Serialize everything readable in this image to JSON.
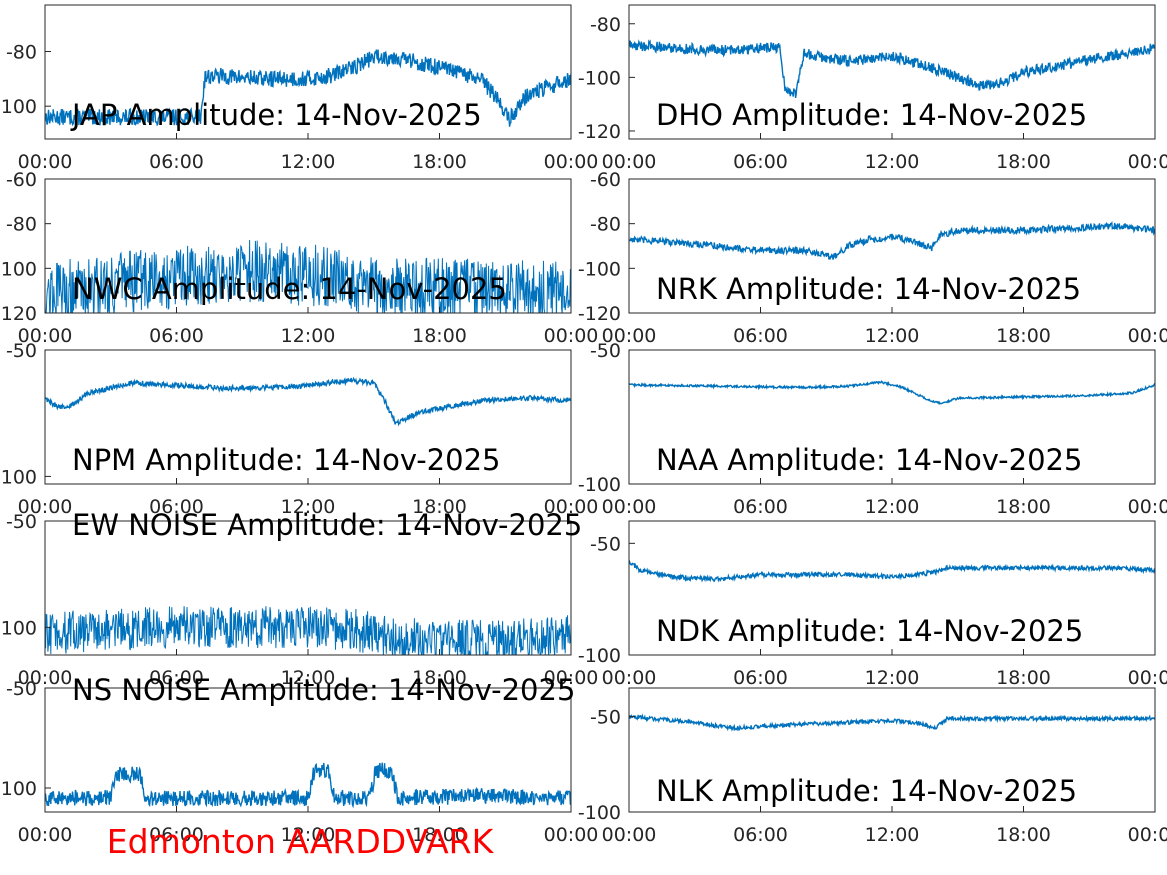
{
  "footer": {
    "label": "Edmonton AARDDVARK",
    "color": "#ff0000"
  },
  "line_color": "#0072bd",
  "chart_data": [
    {
      "type": "line",
      "title": "JAP Amplitude: 14-Nov-2025",
      "xlim": [
        0,
        24
      ],
      "ylim": [
        -112,
        -63
      ],
      "yticks": [
        {
          "v": -80,
          "label": "-80"
        },
        {
          "v": -100,
          "label": "100"
        }
      ],
      "xticks": [
        "00:00",
        "06:00",
        "12:00",
        "18:00",
        "00:00"
      ],
      "noise": 3,
      "x": [
        0,
        2,
        4,
        6,
        7.1,
        7.3,
        8,
        10,
        12,
        13,
        14,
        15,
        16,
        17,
        18,
        19,
        20,
        20.7,
        21.2,
        21.6,
        22,
        23,
        24
      ],
      "y": [
        -104,
        -104,
        -104,
        -104,
        -104,
        -89,
        -89,
        -90,
        -90,
        -89,
        -86,
        -82,
        -82,
        -84,
        -86,
        -88,
        -91,
        -98,
        -105,
        -100,
        -96,
        -93,
        -90
      ]
    },
    {
      "type": "line",
      "title": "DHO Amplitude: 14-Nov-2025",
      "xlim": [
        0,
        24
      ],
      "ylim": [
        -123,
        -73
      ],
      "yticks": [
        {
          "v": -80,
          "label": "-80"
        },
        {
          "v": -100,
          "label": "-100"
        },
        {
          "v": -120,
          "label": "-120"
        }
      ],
      "xticks": [
        "00:00",
        "06:00",
        "12:00",
        "18:00",
        "00:00"
      ],
      "noise": 2,
      "x": [
        0,
        2,
        4,
        6,
        6.9,
        7.1,
        7.6,
        8,
        8.5,
        10,
        12,
        14,
        16,
        17,
        18,
        20,
        22,
        24
      ],
      "y": [
        -88,
        -89,
        -90,
        -89,
        -89,
        -104,
        -106,
        -91,
        -92,
        -94,
        -92,
        -97,
        -103,
        -102,
        -98,
        -95,
        -92,
        -89
      ]
    },
    {
      "type": "line",
      "title": "NWC Amplitude: 14-Nov-2025",
      "xlim": [
        0,
        24
      ],
      "ylim": [
        -120,
        -60
      ],
      "yticks": [
        {
          "v": -60,
          "label": "-60"
        },
        {
          "v": -80,
          "label": "-80"
        },
        {
          "v": -100,
          "label": "100"
        },
        {
          "v": -120,
          "label": "120"
        }
      ],
      "xticks": [
        "00:00",
        "06:00",
        "12:00",
        "18:00",
        "00:00"
      ],
      "noise": 14,
      "x": [
        0,
        3,
        6,
        9,
        12,
        15,
        18,
        21,
        24
      ],
      "y": [
        -111,
        -107,
        -104,
        -101,
        -103,
        -107,
        -109,
        -110,
        -111
      ]
    },
    {
      "type": "line",
      "title": "NRK Amplitude: 14-Nov-2025",
      "xlim": [
        0,
        24
      ],
      "ylim": [
        -120,
        -60
      ],
      "yticks": [
        {
          "v": -60,
          "label": "-60"
        },
        {
          "v": -80,
          "label": "-80"
        },
        {
          "v": -100,
          "label": "-100"
        },
        {
          "v": -120,
          "label": "-120"
        }
      ],
      "xticks": [
        "00:00",
        "06:00",
        "12:00",
        "18:00",
        "00:00"
      ],
      "noise": 1.5,
      "x": [
        0,
        3,
        6,
        8,
        9.3,
        10,
        11,
        12,
        13,
        13.8,
        14.2,
        15,
        16,
        18,
        20,
        22,
        24
      ],
      "y": [
        -87,
        -89,
        -92,
        -92,
        -95,
        -90,
        -87,
        -86,
        -88,
        -91,
        -85,
        -83,
        -83,
        -83,
        -82,
        -81,
        -83
      ]
    },
    {
      "type": "line",
      "title": "NPM Amplitude: 14-Nov-2025",
      "xlim": [
        0,
        24
      ],
      "ylim": [
        -103,
        -50
      ],
      "yticks": [
        {
          "v": -50,
          "label": "-50"
        },
        {
          "v": -100,
          "label": "100"
        }
      ],
      "xticks": [
        "00:00",
        "06:00",
        "12:00",
        "18:00",
        "00:00"
      ],
      "noise": 1,
      "x": [
        0,
        0.5,
        1,
        2,
        3,
        4,
        6,
        8,
        10,
        12,
        13,
        14,
        15,
        15.5,
        16,
        16.5,
        17,
        18,
        20,
        22,
        24
      ],
      "y": [
        -69,
        -72,
        -73,
        -67,
        -65,
        -63,
        -64,
        -65,
        -65,
        -64,
        -63,
        -62,
        -63,
        -70,
        -79,
        -77,
        -75,
        -73,
        -70,
        -69,
        -70
      ]
    },
    {
      "type": "line",
      "title": "NAA Amplitude: 14-Nov-2025",
      "xlim": [
        0,
        24
      ],
      "ylim": [
        -100,
        -50
      ],
      "yticks": [
        {
          "v": -50,
          "label": "-50"
        },
        {
          "v": -100,
          "label": "-100"
        }
      ],
      "xticks": [
        "00:00",
        "06:00",
        "12:00",
        "18:00",
        "00:00"
      ],
      "noise": 0.4,
      "x": [
        0,
        4,
        8,
        10,
        11.5,
        12.5,
        13.5,
        14.2,
        15,
        18,
        21,
        23,
        24
      ],
      "y": [
        -63,
        -63.5,
        -64,
        -63.5,
        -62,
        -64,
        -68,
        -70,
        -68,
        -67.5,
        -67,
        -66,
        -63
      ]
    },
    {
      "type": "line",
      "title": "EW NOISE Amplitude: 14-Nov-2025",
      "xlim": [
        0,
        24
      ],
      "ylim": [
        -113,
        -50
      ],
      "yticks": [
        {
          "v": -50,
          "label": "-50"
        },
        {
          "v": -100,
          "label": "100"
        }
      ],
      "xticks": [
        "00:00",
        "06:00",
        "12:00",
        "18:00",
        "00:00"
      ],
      "noise": 10,
      "x": [
        0,
        3,
        6,
        9,
        12,
        14,
        16,
        18,
        20,
        22,
        24
      ],
      "y": [
        -103,
        -101,
        -100,
        -100,
        -100,
        -101,
        -105,
        -106,
        -106,
        -105,
        -104
      ]
    },
    {
      "type": "line",
      "title": "NDK Amplitude: 14-Nov-2025",
      "xlim": [
        0,
        24
      ],
      "ylim": [
        -100,
        -40
      ],
      "yticks": [
        {
          "v": -50,
          "label": "-50"
        },
        {
          "v": -100,
          "label": "-100"
        }
      ],
      "xticks": [
        "00:00",
        "06:00",
        "12:00",
        "18:00",
        "00:00"
      ],
      "noise": 1,
      "x": [
        0,
        0.5,
        2,
        4,
        6,
        8,
        10,
        12,
        13,
        14,
        14.5,
        16,
        18,
        20,
        22,
        24
      ],
      "y": [
        -58,
        -62,
        -65,
        -66,
        -64,
        -64,
        -64,
        -65,
        -64,
        -63,
        -61,
        -61,
        -61,
        -61,
        -61,
        -62
      ]
    },
    {
      "type": "line",
      "title": "NS NOISE Amplitude: 14-Nov-2025",
      "xlim": [
        0,
        24
      ],
      "ylim": [
        -112,
        -50
      ],
      "yticks": [
        {
          "v": -50,
          "label": "-50"
        },
        {
          "v": -100,
          "label": "100"
        }
      ],
      "xticks": [
        "00:00",
        "06:00",
        "12:00",
        "18:00",
        "00:00"
      ],
      "noise": 4,
      "x": [
        0,
        3,
        3.3,
        4.3,
        4.6,
        12,
        12.3,
        12.9,
        13.2,
        14.8,
        15.1,
        15.8,
        16.1,
        20,
        24
      ],
      "y": [
        -105,
        -105,
        -93,
        -93,
        -105,
        -105,
        -91,
        -91,
        -105,
        -105,
        -91,
        -91,
        -105,
        -104,
        -105
      ]
    },
    {
      "type": "line",
      "title": "NLK Amplitude: 14-Nov-2025",
      "xlim": [
        0,
        24
      ],
      "ylim": [
        -100,
        -35
      ],
      "yticks": [
        {
          "v": -50,
          "label": "-50"
        },
        {
          "v": -100,
          "label": "-100"
        }
      ],
      "xticks": [
        "00:00",
        "06:00",
        "12:00",
        "18:00",
        "00:00"
      ],
      "noise": 1,
      "x": [
        0,
        1,
        2,
        3,
        4,
        5,
        6,
        8,
        10,
        12,
        13,
        14,
        14.5,
        15,
        18,
        21,
        24
      ],
      "y": [
        -50,
        -51,
        -52,
        -53,
        -55,
        -56,
        -55,
        -54,
        -53,
        -52,
        -53,
        -56,
        -51,
        -51,
        -51,
        -51,
        -51
      ]
    }
  ]
}
